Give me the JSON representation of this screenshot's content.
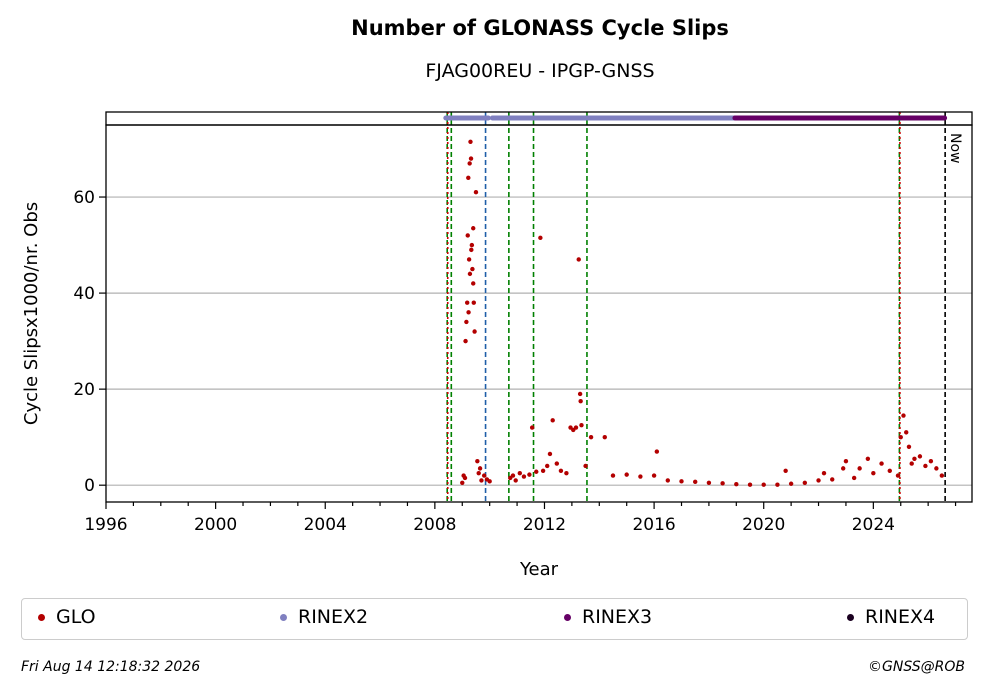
{
  "header": {
    "title": "Number of GLONASS Cycle Slips",
    "subtitle": "FJAG00REU - IPGP-GNSS"
  },
  "footer": {
    "timestamp": "Fri Aug 14 12:18:32 2026",
    "copyright": "©GNSS@ROB"
  },
  "legend": [
    {
      "label": "GLO",
      "color": "#b30000"
    },
    {
      "label": "RINEX2",
      "color": "#8080c0"
    },
    {
      "label": "RINEX3",
      "color": "#660066"
    },
    {
      "label": "RINEX4",
      "color": "#1a0020"
    }
  ],
  "chart_data": {
    "type": "scatter",
    "title": "Number of GLONASS Cycle Slips",
    "subtitle": "FJAG00REU - IPGP-GNSS",
    "xlabel": "Year",
    "ylabel": "Cycle Slipsx1000/nr. Obs",
    "xlim": [
      1996,
      2027.6
    ],
    "ylim": [
      -3.5,
      75
    ],
    "xticks": [
      1996,
      2000,
      2004,
      2008,
      2012,
      2016,
      2020,
      2024
    ],
    "xtick_labels": [
      "1996",
      "2000",
      "2004",
      "2008",
      "2012",
      "2016",
      "2020",
      "2024"
    ],
    "yticks": [
      0,
      20,
      40,
      60
    ],
    "ytick_labels": [
      "0",
      "20",
      "40",
      "60"
    ],
    "grid": "y",
    "now_label": "Now",
    "now_x": 2026.62,
    "vlines": [
      {
        "x": 2008.45,
        "color": "#008000",
        "style": "dashed"
      },
      {
        "x": 2008.47,
        "color": "#cc0000",
        "style": "dotted"
      },
      {
        "x": 2008.6,
        "color": "#008000",
        "style": "dashed"
      },
      {
        "x": 2009.85,
        "color": "#1f5fa8",
        "style": "dashed"
      },
      {
        "x": 2010.7,
        "color": "#008000",
        "style": "dashed"
      },
      {
        "x": 2011.6,
        "color": "#008000",
        "style": "dashed"
      },
      {
        "x": 2013.55,
        "color": "#008000",
        "style": "dashed"
      },
      {
        "x": 2024.95,
        "color": "#008000",
        "style": "dashed"
      },
      {
        "x": 2024.97,
        "color": "#cc0000",
        "style": "dotted"
      }
    ],
    "rinex_bars": [
      {
        "name": "RINEX2",
        "start": 2008.4,
        "end": 2009.95,
        "color": "#8080c0"
      },
      {
        "name": "RINEX2",
        "start": 2010.1,
        "end": 2018.95,
        "color": "#8080c0"
      },
      {
        "name": "RINEX3",
        "start": 2018.95,
        "end": 2026.6,
        "color": "#660066"
      }
    ],
    "series": [
      {
        "name": "GLO",
        "color": "#b30000",
        "points": [
          [
            2009.0,
            0.5
          ],
          [
            2009.05,
            2.0
          ],
          [
            2009.1,
            1.5
          ],
          [
            2009.12,
            30.0
          ],
          [
            2009.15,
            34.0
          ],
          [
            2009.18,
            38.0
          ],
          [
            2009.2,
            52.0
          ],
          [
            2009.22,
            64.0
          ],
          [
            2009.25,
            47.0
          ],
          [
            2009.27,
            67.0
          ],
          [
            2009.3,
            71.5
          ],
          [
            2009.32,
            68.0
          ],
          [
            2009.35,
            50.0
          ],
          [
            2009.37,
            45.0
          ],
          [
            2009.4,
            42.0
          ],
          [
            2009.42,
            38.0
          ],
          [
            2009.45,
            32.0
          ],
          [
            2009.5,
            61.0
          ],
          [
            2009.4,
            53.5
          ],
          [
            2009.33,
            49.0
          ],
          [
            2009.28,
            44.0
          ],
          [
            2009.23,
            36.0
          ],
          [
            2009.55,
            5.0
          ],
          [
            2009.6,
            2.5
          ],
          [
            2009.65,
            3.5
          ],
          [
            2009.7,
            1.0
          ],
          [
            2009.8,
            2.0
          ],
          [
            2009.9,
            1.2
          ],
          [
            2010.0,
            0.8
          ],
          [
            2010.75,
            1.5
          ],
          [
            2010.85,
            2.0
          ],
          [
            2010.95,
            1.0
          ],
          [
            2011.1,
            2.5
          ],
          [
            2011.25,
            1.8
          ],
          [
            2011.45,
            2.2
          ],
          [
            2011.55,
            12.0
          ],
          [
            2011.7,
            2.8
          ],
          [
            2011.85,
            51.5
          ],
          [
            2011.95,
            3.0
          ],
          [
            2012.1,
            4.0
          ],
          [
            2012.2,
            6.5
          ],
          [
            2012.3,
            13.5
          ],
          [
            2012.45,
            4.5
          ],
          [
            2012.6,
            3.0
          ],
          [
            2012.8,
            2.5
          ],
          [
            2012.95,
            12.0
          ],
          [
            2013.05,
            11.5
          ],
          [
            2013.15,
            12.0
          ],
          [
            2013.25,
            47.0
          ],
          [
            2013.3,
            19.0
          ],
          [
            2013.32,
            17.5
          ],
          [
            2013.35,
            12.5
          ],
          [
            2013.5,
            4.0
          ],
          [
            2013.7,
            10.0
          ],
          [
            2014.2,
            10.0
          ],
          [
            2014.5,
            2.0
          ],
          [
            2015.0,
            2.2
          ],
          [
            2015.5,
            1.8
          ],
          [
            2016.0,
            2.0
          ],
          [
            2016.1,
            7.0
          ],
          [
            2016.5,
            1.0
          ],
          [
            2017.0,
            0.8
          ],
          [
            2017.5,
            0.7
          ],
          [
            2018.0,
            0.5
          ],
          [
            2018.5,
            0.4
          ],
          [
            2019.0,
            0.2
          ],
          [
            2019.5,
            0.1
          ],
          [
            2020.0,
            0.1
          ],
          [
            2020.5,
            0.1
          ],
          [
            2020.8,
            3.0
          ],
          [
            2021.0,
            0.3
          ],
          [
            2021.5,
            0.5
          ],
          [
            2022.0,
            1.0
          ],
          [
            2022.2,
            2.5
          ],
          [
            2022.5,
            1.2
          ],
          [
            2022.9,
            3.5
          ],
          [
            2023.0,
            5.0
          ],
          [
            2023.3,
            1.5
          ],
          [
            2023.5,
            3.5
          ],
          [
            2023.8,
            5.5
          ],
          [
            2024.0,
            2.5
          ],
          [
            2024.3,
            4.5
          ],
          [
            2024.6,
            3.0
          ],
          [
            2024.9,
            2.0
          ],
          [
            2025.0,
            10.0
          ],
          [
            2025.1,
            14.5
          ],
          [
            2025.2,
            11.0
          ],
          [
            2025.3,
            8.0
          ],
          [
            2025.4,
            4.5
          ],
          [
            2025.5,
            5.5
          ],
          [
            2025.7,
            6.0
          ],
          [
            2025.9,
            4.0
          ],
          [
            2026.1,
            5.0
          ],
          [
            2026.3,
            3.5
          ],
          [
            2026.5,
            2.0
          ]
        ]
      }
    ]
  }
}
